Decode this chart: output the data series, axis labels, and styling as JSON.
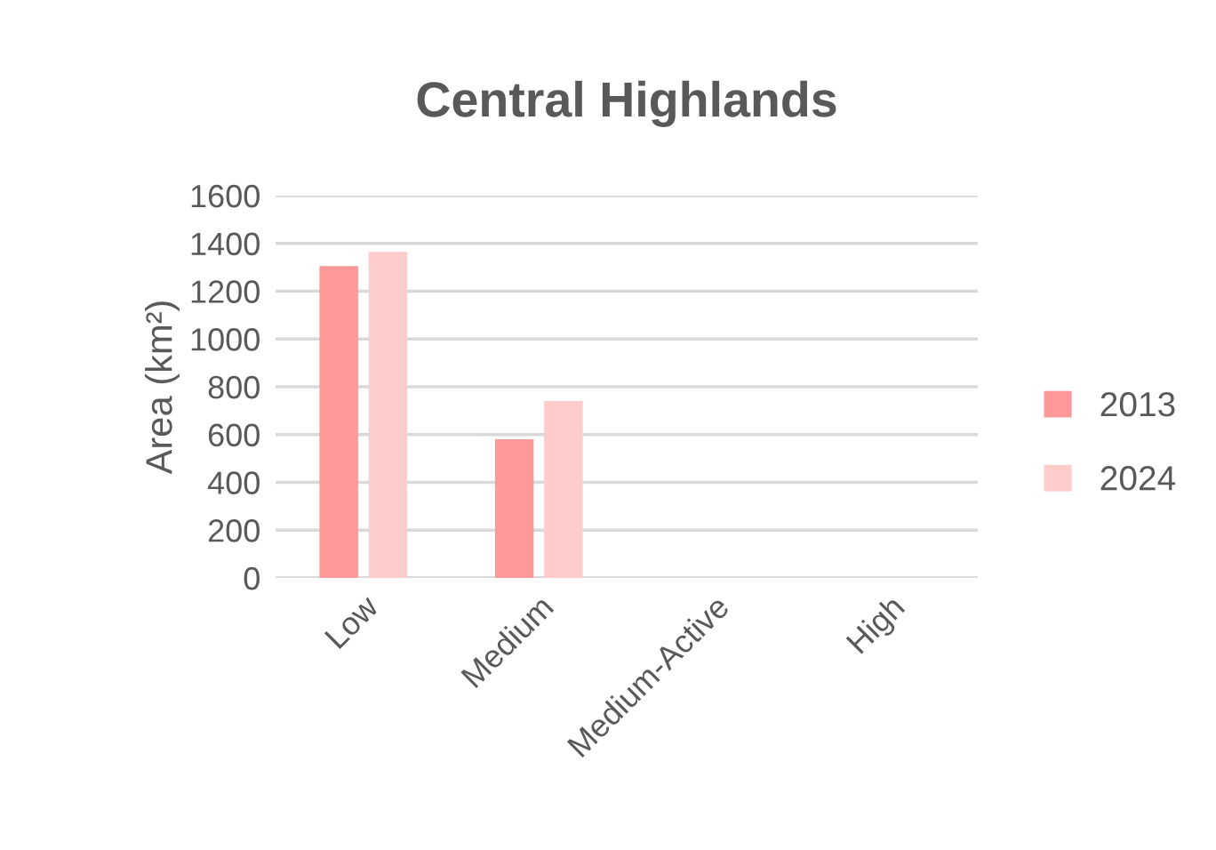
{
  "chart_data": {
    "type": "bar",
    "title": "Central Highlands",
    "ylabel": "Area (km²)",
    "categories": [
      "Low",
      "Medium",
      "Medium-Active",
      "High"
    ],
    "series": [
      {
        "name": "2013",
        "color": "#ff9999",
        "values": [
          1305,
          580,
          0,
          0
        ]
      },
      {
        "name": "2024",
        "color": "#ffcccc",
        "values": [
          1365,
          740,
          0,
          0
        ]
      }
    ],
    "ylim": [
      0,
      1600
    ],
    "yticks": [
      0,
      200,
      400,
      600,
      800,
      1000,
      1200,
      1400,
      1600
    ],
    "grid": "y",
    "legend": "right"
  }
}
